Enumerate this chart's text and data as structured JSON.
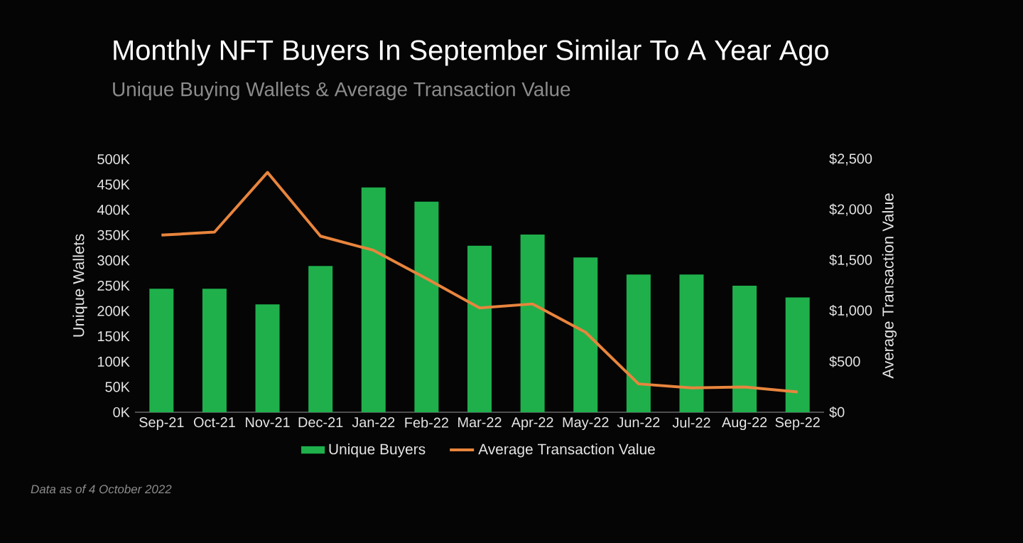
{
  "chart_data": {
    "type": "bar",
    "title": "Monthly NFT Buyers In September Similar To A Year Ago",
    "subtitle": "Unique Buying Wallets & Average Transaction Value",
    "ylabel": "Unique Wallets",
    "y2label": "Average Transaction Value",
    "categories": [
      "Sep-21",
      "Oct-21",
      "Nov-21",
      "Dec-21",
      "Jan-22",
      "Feb-22",
      "Mar-22",
      "Apr-22",
      "May-22",
      "Jun-22",
      "Jul-22",
      "Aug-22",
      "Sep-22"
    ],
    "series": [
      {
        "name": "Unique Buyers",
        "color": "#1fb04c",
        "values": [
          244,
          244,
          213,
          289,
          444,
          416,
          329,
          351,
          306,
          272,
          272,
          250,
          227
        ]
      },
      {
        "name": "Average Transaction Value",
        "type": "line",
        "axis": "y2",
        "color": "#e8853d",
        "values": [
          1750,
          1780,
          2370,
          1740,
          1600,
          1320,
          1030,
          1070,
          790,
          280,
          240,
          250,
          200
        ]
      }
    ],
    "ylim": [
      0,
      500
    ],
    "yticks": [
      {
        "value": 0,
        "label": "0K"
      },
      {
        "value": 50,
        "label": "50K"
      },
      {
        "value": 100,
        "label": "100K"
      },
      {
        "value": 150,
        "label": "150K"
      },
      {
        "value": 200,
        "label": "200K"
      },
      {
        "value": 250,
        "label": "250K"
      },
      {
        "value": 300,
        "label": "300K"
      },
      {
        "value": 350,
        "label": "350K"
      },
      {
        "value": 400,
        "label": "400K"
      },
      {
        "value": 450,
        "label": "450K"
      },
      {
        "value": 500,
        "label": "500K"
      }
    ],
    "y2lim": [
      0,
      2500
    ],
    "y2ticks": [
      {
        "value": 0,
        "label": "$0"
      },
      {
        "value": 500,
        "label": "$500"
      },
      {
        "value": 1000,
        "label": "$1,000"
      },
      {
        "value": 1500,
        "label": "$1,500"
      },
      {
        "value": 2000,
        "label": "$2,000"
      },
      {
        "value": 2500,
        "label": "$2,500"
      }
    ],
    "legend": "bottom",
    "annotations": [
      "Data as of 4 October 2022"
    ]
  }
}
